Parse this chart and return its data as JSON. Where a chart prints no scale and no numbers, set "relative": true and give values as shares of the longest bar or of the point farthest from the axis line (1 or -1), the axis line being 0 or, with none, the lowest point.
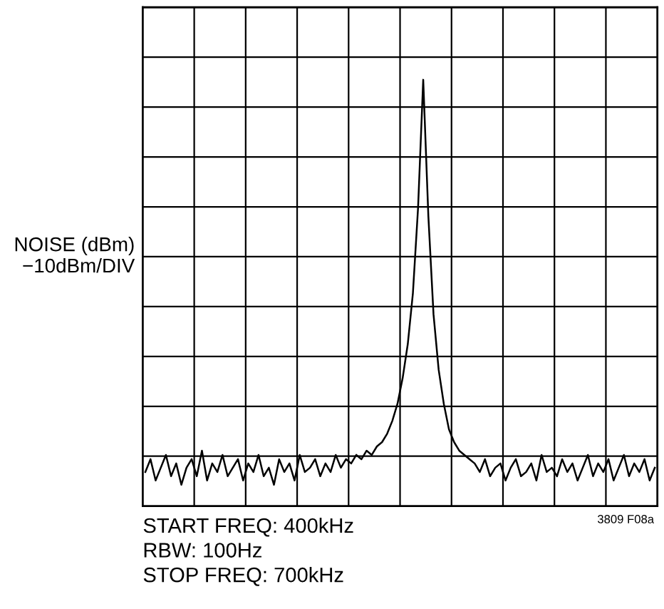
{
  "chart_data": {
    "type": "line",
    "relative": true,
    "grid": true,
    "color": "#000000",
    "ylabel": "NOISE (dBm)\n−10dBm/DIV",
    "annotations": [
      "3809 F08a",
      "START FREQ: 400kHz\nRBW: 100Hz\nSTOP FREQ: 700kHz"
    ],
    "categories": [
      null,
      null,
      null,
      null,
      null,
      null,
      null,
      null,
      null,
      null,
      null,
      null,
      null,
      null,
      null,
      null,
      null,
      null,
      null,
      null,
      null,
      null,
      null,
      null,
      null,
      null,
      null,
      null,
      null,
      null,
      null,
      null,
      null,
      null,
      null,
      null,
      null,
      null,
      null,
      null,
      null,
      null,
      null,
      null,
      null,
      null,
      null,
      null,
      null,
      null,
      null,
      null,
      null,
      null,
      null,
      null,
      null,
      null,
      null,
      null,
      null,
      null,
      null,
      null,
      null,
      null,
      null,
      null,
      null,
      null,
      null,
      null,
      null,
      null,
      null,
      null,
      null,
      null,
      null,
      null,
      null,
      null,
      null,
      null,
      null,
      null,
      null,
      null,
      null,
      null,
      null,
      null,
      null,
      null,
      null,
      null,
      null,
      null,
      null,
      null
    ],
    "values": [
      0.08,
      0.11,
      0.06,
      0.09,
      0.12,
      0.07,
      0.1,
      0.05,
      0.09,
      0.11,
      0.07,
      0.13,
      0.06,
      0.1,
      0.08,
      0.12,
      0.07,
      0.09,
      0.11,
      0.06,
      0.1,
      0.08,
      0.12,
      0.07,
      0.09,
      0.05,
      0.11,
      0.08,
      0.1,
      0.06,
      0.12,
      0.08,
      0.09,
      0.11,
      0.07,
      0.1,
      0.08,
      0.12,
      0.09,
      0.11,
      0.1,
      0.12,
      0.11,
      0.13,
      0.12,
      0.14,
      0.15,
      0.17,
      0.2,
      0.24,
      0.3,
      0.38,
      0.5,
      0.7,
      1.0,
      0.68,
      0.45,
      0.32,
      0.24,
      0.18,
      0.15,
      0.13,
      0.12,
      0.11,
      0.1,
      0.08,
      0.11,
      0.07,
      0.09,
      0.1,
      0.06,
      0.09,
      0.11,
      0.07,
      0.08,
      0.1,
      0.06,
      0.12,
      0.08,
      0.09,
      0.07,
      0.11,
      0.08,
      0.1,
      0.06,
      0.09,
      0.12,
      0.07,
      0.1,
      0.08,
      0.11,
      0.06,
      0.09,
      0.12,
      0.07,
      0.1,
      0.08,
      0.11,
      0.06,
      0.09
    ]
  }
}
